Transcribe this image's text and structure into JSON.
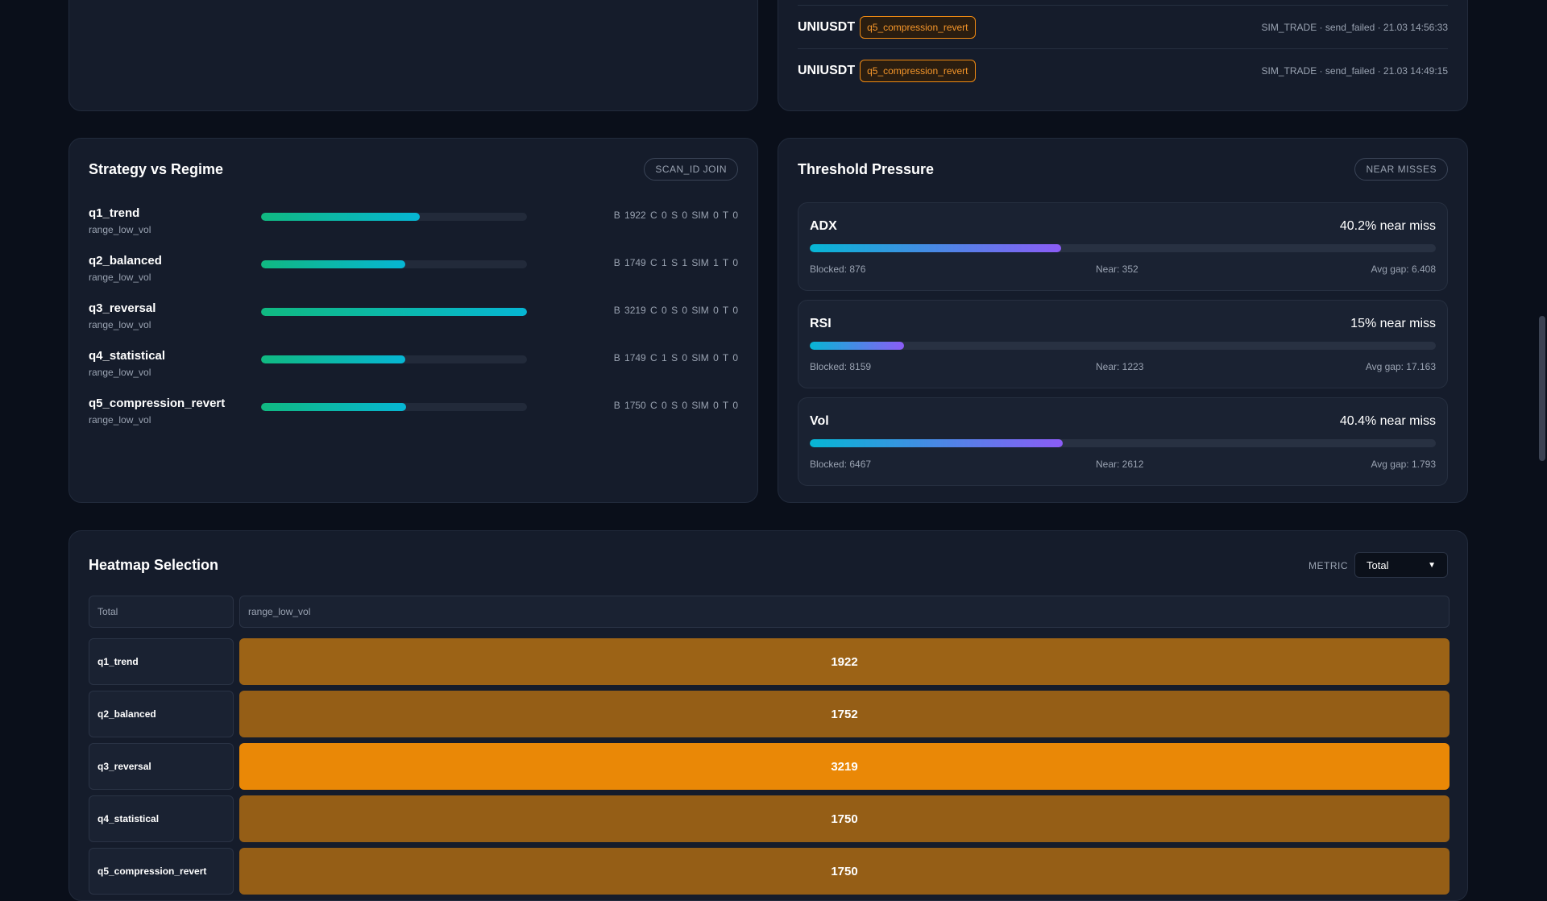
{
  "signals": {
    "rows": [
      {
        "symbol": "UNIUSDT",
        "tag": "q5_compression_revert",
        "meta": "SIM_TRADE · send_failed · 21.03 14:56:33"
      },
      {
        "symbol": "UNIUSDT",
        "tag": "q5_compression_revert",
        "meta": "SIM_TRADE · send_failed · 21.03 14:49:15"
      }
    ]
  },
  "strategy_regime": {
    "title": "Strategy vs Regime",
    "badge": "SCAN_ID JOIN",
    "rows": [
      {
        "name": "q1_trend",
        "regime": "range_low_vol",
        "fill": 0.597,
        "stats": "B 1922   C 0   S 0   SIM 0   T 0"
      },
      {
        "name": "q2_balanced",
        "regime": "range_low_vol",
        "fill": 0.543,
        "stats": "B 1749   C 1   S 1   SIM 1   T 0"
      },
      {
        "name": "q3_reversal",
        "regime": "range_low_vol",
        "fill": 1.0,
        "stats": "B 3219   C 0   S 0   SIM 0   T 0"
      },
      {
        "name": "q4_statistical",
        "regime": "range_low_vol",
        "fill": 0.543,
        "stats": "B 1749   C 1   S 0   SIM 0   T 0"
      },
      {
        "name": "q5_compression_revert",
        "regime": "range_low_vol",
        "fill": 0.544,
        "stats": "B 1750   C 0   S 0   SIM 0   T 0"
      }
    ]
  },
  "threshold": {
    "title": "Threshold Pressure",
    "badge": "NEAR MISSES",
    "items": [
      {
        "name": "ADX",
        "pct_label": "40.2% near miss",
        "fill": 0.402,
        "blocked": "Blocked: 876",
        "near": "Near: 352",
        "gap": "Avg gap: 6.408"
      },
      {
        "name": "RSI",
        "pct_label": "15% near miss",
        "fill": 0.15,
        "blocked": "Blocked: 8159",
        "near": "Near: 1223",
        "gap": "Avg gap: 17.163"
      },
      {
        "name": "Vol",
        "pct_label": "40.4% near miss",
        "fill": 0.404,
        "blocked": "Blocked: 6467",
        "near": "Near: 2612",
        "gap": "Avg gap: 1.793"
      }
    ]
  },
  "heatmap": {
    "title": "Heatmap Selection",
    "metric_label": "METRIC",
    "metric_value": "Total",
    "corner": "Total",
    "column": "range_low_vol",
    "rows": [
      {
        "label": "q1_trend",
        "value": "1922",
        "color": "#9c6316"
      },
      {
        "label": "q2_balanced",
        "value": "1752",
        "color": "#955e16"
      },
      {
        "label": "q3_reversal",
        "value": "3219",
        "color": "#ea8806"
      },
      {
        "label": "q4_statistical",
        "value": "1750",
        "color": "#955e16"
      },
      {
        "label": "q5_compression_revert",
        "value": "1750",
        "color": "#955e16"
      }
    ]
  }
}
